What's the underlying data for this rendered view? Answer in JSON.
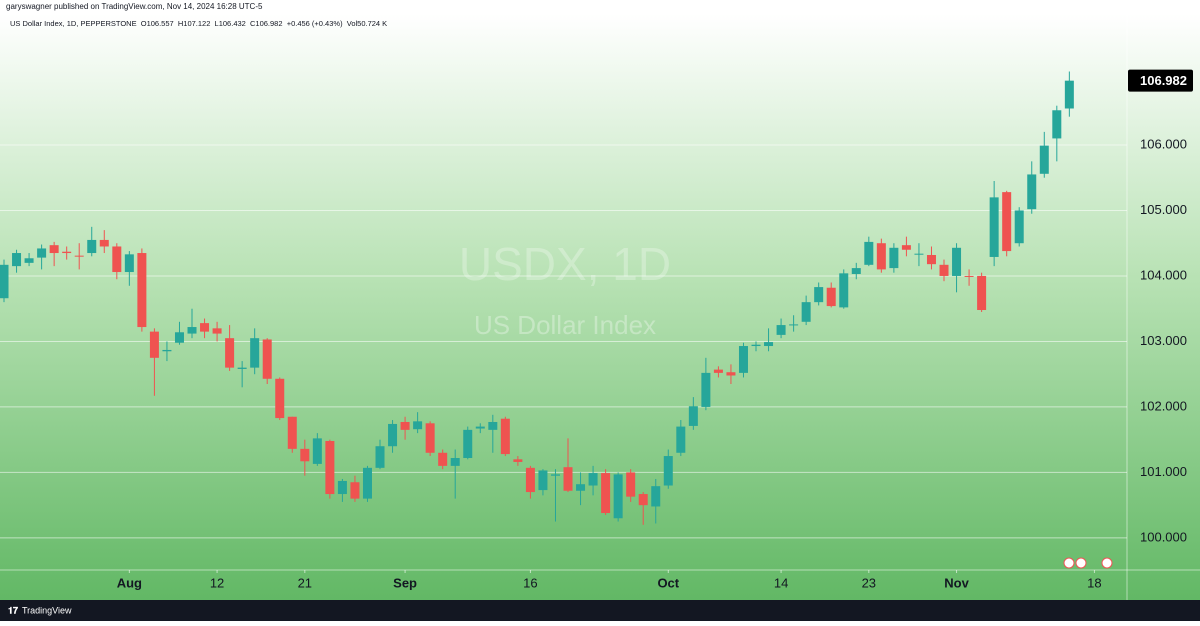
{
  "header": {
    "published": "garyswagner published on TradingView.com, Nov 14, 2024 16:28 UTC-5",
    "legend": "US Dollar Index, 1D, PEPPERSTONE  O106.557  H107.122  L106.432  C106.982  +0.456 (+0.43%)  Vol50.724 K"
  },
  "chart_data": {
    "type": "candlestick",
    "title": "USDX, 1D",
    "subtitle": "US Dollar Index",
    "up_color": "#26a69a",
    "down_color": "#ef5350",
    "grid": true,
    "open": [
      103.66,
      104.15,
      104.2,
      104.28,
      104.47,
      104.37,
      104.31,
      104.35,
      104.55,
      104.45,
      104.06,
      104.35,
      103.15,
      102.85,
      102.98,
      103.12,
      103.28,
      103.2,
      103.05,
      102.58,
      102.6,
      103.03,
      102.43,
      101.85,
      101.36,
      101.13,
      101.48,
      100.67,
      100.85,
      100.6,
      101.07,
      101.4,
      101.77,
      101.66,
      101.75,
      101.3,
      101.1,
      101.22,
      101.67,
      101.65,
      101.82,
      101.2,
      101.07,
      100.73,
      100.95,
      101.08,
      100.72,
      100.8,
      100.99,
      100.3,
      101.0,
      100.67,
      100.48,
      100.8,
      101.3,
      101.71,
      102.0,
      102.57,
      102.53,
      102.52,
      102.93,
      102.93,
      103.1,
      103.25,
      103.3,
      103.6,
      103.82,
      103.52,
      104.03,
      104.17,
      104.5,
      104.12,
      104.47,
      104.33,
      104.32,
      104.17,
      104.0,
      104.0,
      104.0,
      104.29,
      105.28,
      104.5,
      105.02,
      105.56,
      106.1,
      106.557
    ],
    "high": [
      104.25,
      104.4,
      104.35,
      104.48,
      104.52,
      104.45,
      104.5,
      104.75,
      104.7,
      104.5,
      104.38,
      104.42,
      103.2,
      103.0,
      103.3,
      103.5,
      103.35,
      103.3,
      103.25,
      102.7,
      103.2,
      103.05,
      102.45,
      101.85,
      101.5,
      101.6,
      101.5,
      100.9,
      100.95,
      101.1,
      101.5,
      101.8,
      101.85,
      101.92,
      101.78,
      101.35,
      101.35,
      101.7,
      101.75,
      101.88,
      101.85,
      101.25,
      101.1,
      101.05,
      101.05,
      101.52,
      101.0,
      101.1,
      101.05,
      101.0,
      101.05,
      100.7,
      100.9,
      101.35,
      101.8,
      102.15,
      102.75,
      102.62,
      102.65,
      102.98,
      103.0,
      103.2,
      103.35,
      103.4,
      103.7,
      103.9,
      103.9,
      104.1,
      104.2,
      104.6,
      104.57,
      104.5,
      104.6,
      104.5,
      104.45,
      104.25,
      104.5,
      104.1,
      104.05,
      105.45,
      105.3,
      105.05,
      105.75,
      106.2,
      106.6,
      107.122
    ],
    "low": [
      103.6,
      104.05,
      104.15,
      104.1,
      104.15,
      104.25,
      104.1,
      104.3,
      104.35,
      103.95,
      103.85,
      103.15,
      102.17,
      102.7,
      102.95,
      103.05,
      103.05,
      103.0,
      102.55,
      102.3,
      102.5,
      102.35,
      101.8,
      101.3,
      100.95,
      101.1,
      100.6,
      100.55,
      100.55,
      100.55,
      101.05,
      101.3,
      101.5,
      101.6,
      101.25,
      101.05,
      100.6,
      101.2,
      101.6,
      101.3,
      101.25,
      101.1,
      100.6,
      100.65,
      100.25,
      100.7,
      100.5,
      100.65,
      100.35,
      100.25,
      100.55,
      100.2,
      100.22,
      100.75,
      101.25,
      101.65,
      101.95,
      102.45,
      102.35,
      102.45,
      102.85,
      102.85,
      103.05,
      103.15,
      103.25,
      103.55,
      103.52,
      103.5,
      103.95,
      104.15,
      104.05,
      104.05,
      104.3,
      104.15,
      104.1,
      103.92,
      103.75,
      103.85,
      103.45,
      104.15,
      104.3,
      104.45,
      104.95,
      105.5,
      105.75,
      106.432
    ],
    "close": [
      104.17,
      104.35,
      104.27,
      104.42,
      104.35,
      104.35,
      104.3,
      104.55,
      104.45,
      104.06,
      104.33,
      103.22,
      102.75,
      102.87,
      103.14,
      103.22,
      103.15,
      103.12,
      102.6,
      102.6,
      103.05,
      102.43,
      101.83,
      101.36,
      101.17,
      101.52,
      100.67,
      100.87,
      100.6,
      101.07,
      101.4,
      101.74,
      101.65,
      101.78,
      101.3,
      101.1,
      101.22,
      101.65,
      101.7,
      101.77,
      101.28,
      101.16,
      100.7,
      101.03,
      100.97,
      100.72,
      100.82,
      100.99,
      100.38,
      100.97,
      100.63,
      100.5,
      100.79,
      101.25,
      101.7,
      102.01,
      102.52,
      102.52,
      102.48,
      102.93,
      102.95,
      102.99,
      103.25,
      103.26,
      103.6,
      103.83,
      103.54,
      104.04,
      104.12,
      104.52,
      104.1,
      104.43,
      104.4,
      104.34,
      104.18,
      104.0,
      104.43,
      103.99,
      103.48,
      105.2,
      104.38,
      105.0,
      105.55,
      105.99,
      106.53,
      106.982
    ],
    "xlim": [
      -0.32,
      89.6
    ],
    "xticks": [
      {
        "value": 10,
        "label": "Aug"
      },
      {
        "value": 17,
        "label": "12"
      },
      {
        "value": 24,
        "label": "21"
      },
      {
        "value": 32,
        "label": "Sep"
      },
      {
        "value": 42,
        "label": "16"
      },
      {
        "value": 53,
        "label": "Oct"
      },
      {
        "value": 62,
        "label": "14"
      },
      {
        "value": 69,
        "label": "23"
      },
      {
        "value": 76,
        "label": "Nov"
      },
      {
        "value": 87,
        "label": "18"
      }
    ],
    "ylim": [
      99.51,
      108.0
    ],
    "yticks": [
      {
        "value": 100,
        "label": "100.000"
      },
      {
        "value": 101,
        "label": "101.000"
      },
      {
        "value": 102,
        "label": "102.000"
      },
      {
        "value": 103,
        "label": "103.000"
      },
      {
        "value": 104,
        "label": "104.000"
      },
      {
        "value": 105,
        "label": "105.000"
      },
      {
        "value": 106,
        "label": "106.000"
      }
    ]
  },
  "footer": {
    "brand": "TradingView"
  }
}
